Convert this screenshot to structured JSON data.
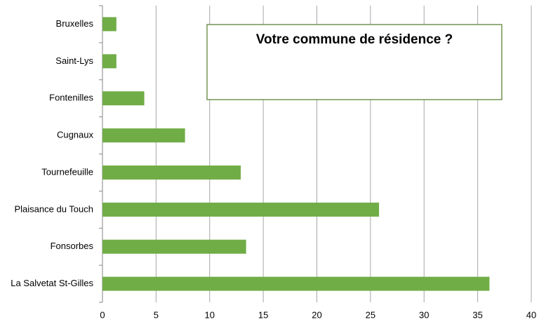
{
  "chart_data": {
    "type": "bar",
    "orientation": "horizontal",
    "title": "Votre commune de résidence ?",
    "categories": [
      "Bruxelles",
      "Saint-Lys",
      "Fontenilles",
      "Cugnaux",
      "Tournefeuille",
      "Plaisance du Touch",
      "Fonsorbes",
      "La Salvetat St-Gilles"
    ],
    "values": [
      1.3,
      1.3,
      3.9,
      7.7,
      12.9,
      25.8,
      13.4,
      36.1
    ],
    "color": "#70ad47",
    "xlim": [
      0,
      40
    ],
    "xticks": [
      0,
      5,
      10,
      15,
      20,
      25,
      30,
      35,
      40
    ],
    "grid": true
  }
}
